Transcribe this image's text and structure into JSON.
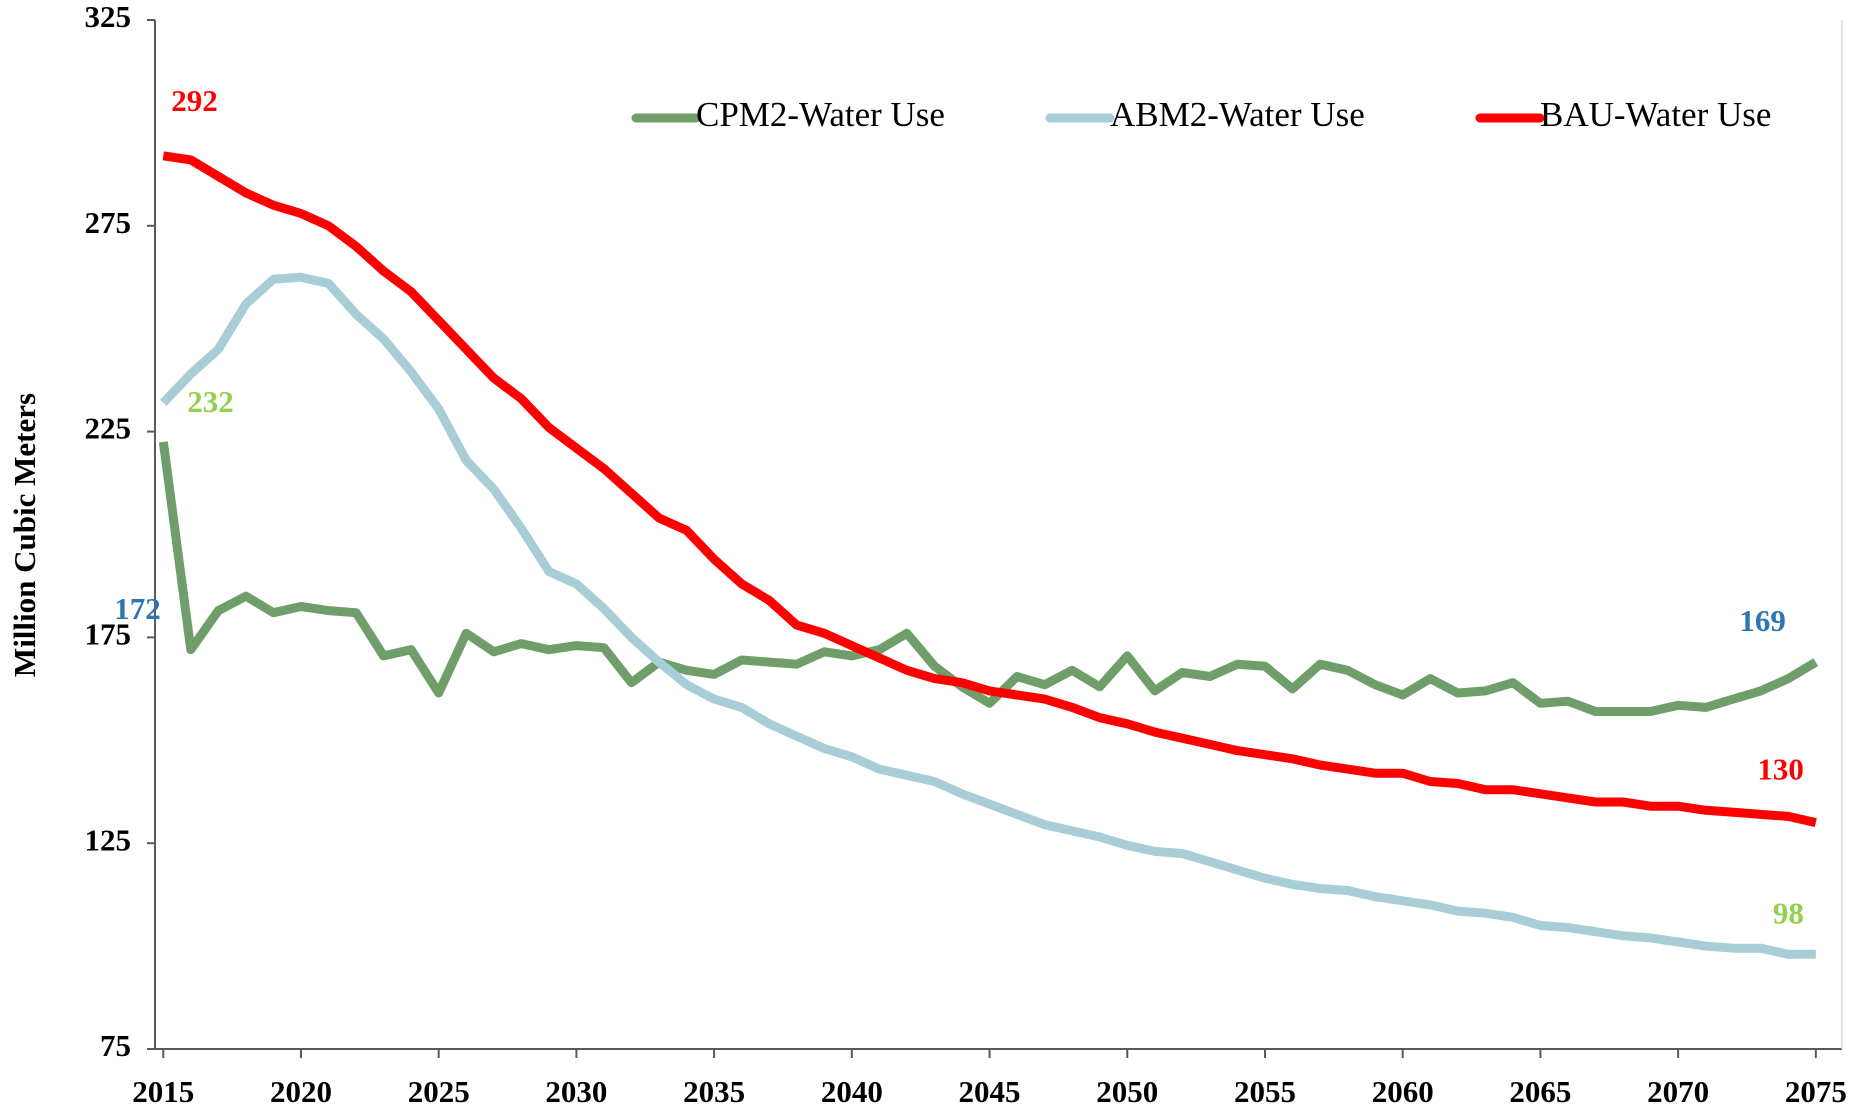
{
  "chart_data": {
    "type": "line",
    "y_label": "Million Cubic Meters",
    "x": [
      2015,
      2016,
      2017,
      2018,
      2019,
      2020,
      2021,
      2022,
      2023,
      2024,
      2025,
      2026,
      2027,
      2028,
      2029,
      2030,
      2031,
      2032,
      2033,
      2034,
      2035,
      2036,
      2037,
      2038,
      2039,
      2040,
      2041,
      2042,
      2043,
      2044,
      2045,
      2046,
      2047,
      2048,
      2049,
      2050,
      2051,
      2052,
      2053,
      2054,
      2055,
      2056,
      2057,
      2058,
      2059,
      2060,
      2061,
      2062,
      2063,
      2064,
      2065,
      2066,
      2067,
      2068,
      2069,
      2070,
      2071,
      2072,
      2073,
      2074,
      2075
    ],
    "xlim": [
      2014.7,
      2075.95
    ],
    "xticks": [
      2015,
      2020,
      2025,
      2030,
      2035,
      2040,
      2045,
      2050,
      2055,
      2060,
      2065,
      2070,
      2075
    ],
    "ylim": [
      75,
      325
    ],
    "yticks": [
      75,
      125,
      175,
      225,
      275,
      325
    ],
    "legend": "top-right",
    "series": [
      {
        "name": "CPM2-Water Use",
        "color": "#6f9e6a",
        "values": [
          222.5,
          172,
          181.5,
          185,
          181,
          182.5,
          181.5,
          181,
          170.5,
          172,
          161.5,
          176,
          171.5,
          173.5,
          172,
          173,
          172.5,
          164,
          169,
          167,
          166,
          169.5,
          169,
          168.5,
          171.5,
          170.5,
          172,
          176,
          168,
          163,
          159,
          165.5,
          163.5,
          167,
          163,
          170.5,
          162,
          166.5,
          165.5,
          168.5,
          168,
          162.5,
          168.5,
          167,
          163.5,
          161,
          165,
          161.5,
          162,
          164,
          159,
          159.5,
          157,
          157,
          157,
          158.5,
          158,
          160,
          162,
          165,
          169
        ],
        "value_labels": [
          null,
          "172",
          null,
          null,
          null,
          null,
          null,
          null,
          null,
          null,
          null,
          null,
          null,
          null,
          null,
          null,
          null,
          null,
          null,
          null,
          null,
          null,
          null,
          null,
          null,
          null,
          null,
          null,
          null,
          null,
          null,
          null,
          null,
          null,
          null,
          null,
          null,
          null,
          null,
          null,
          null,
          null,
          null,
          null,
          null,
          null,
          null,
          null,
          null,
          null,
          null,
          null,
          null,
          null,
          null,
          null,
          null,
          null,
          null,
          null,
          "169"
        ],
        "value_label_color": "#2e75b6"
      },
      {
        "name": "ABM2-Water Use",
        "color": "#a9cdd6",
        "values": [
          232,
          239,
          245,
          256,
          262,
          262.5,
          261,
          253.5,
          247.5,
          239.5,
          230.5,
          218,
          211,
          201.5,
          191,
          188,
          182,
          175,
          169,
          163.5,
          160,
          158,
          154,
          151,
          148,
          146,
          143,
          141.5,
          140,
          137,
          134.5,
          132,
          129.5,
          128,
          126.5,
          124.5,
          123,
          122.5,
          120.5,
          118.5,
          116.5,
          115,
          114,
          113.5,
          112,
          111,
          110,
          108.5,
          108,
          107,
          105,
          104.5,
          103.5,
          102.5,
          102,
          101,
          100,
          99.5,
          99.5,
          98,
          98
        ],
        "value_labels": [
          "232",
          null,
          null,
          null,
          null,
          null,
          null,
          null,
          null,
          null,
          null,
          null,
          null,
          null,
          null,
          null,
          null,
          null,
          null,
          null,
          null,
          null,
          null,
          null,
          null,
          null,
          null,
          null,
          null,
          null,
          null,
          null,
          null,
          null,
          null,
          null,
          null,
          null,
          null,
          null,
          null,
          null,
          null,
          null,
          null,
          null,
          null,
          null,
          null,
          null,
          null,
          null,
          null,
          null,
          null,
          null,
          null,
          null,
          null,
          null,
          "98"
        ],
        "value_label_color": "#92d050"
      },
      {
        "name": "BAU-Water Use",
        "color": "#ff0000",
        "values": [
          292,
          291,
          287,
          283,
          280,
          278,
          275,
          270,
          264,
          259,
          252,
          245,
          238,
          233,
          226,
          221,
          216,
          210,
          204,
          201,
          194,
          188,
          184,
          178,
          176,
          173,
          170,
          167,
          165,
          164,
          162,
          161,
          160,
          158,
          155.5,
          154,
          152,
          150.5,
          149,
          147.5,
          146.5,
          145.5,
          144,
          143,
          142,
          142,
          140,
          139.5,
          138,
          138,
          137,
          136,
          135,
          135,
          134,
          134,
          133,
          132.5,
          132,
          131.5,
          130
        ],
        "value_labels": [
          "292",
          null,
          null,
          null,
          null,
          null,
          null,
          null,
          null,
          null,
          null,
          null,
          null,
          null,
          null,
          null,
          null,
          null,
          null,
          null,
          null,
          null,
          null,
          null,
          null,
          null,
          null,
          null,
          null,
          null,
          null,
          null,
          null,
          null,
          null,
          null,
          null,
          null,
          null,
          null,
          null,
          null,
          null,
          null,
          null,
          null,
          null,
          null,
          null,
          null,
          null,
          null,
          null,
          null,
          null,
          null,
          null,
          null,
          null,
          null,
          "130"
        ],
        "value_label_color": "#ff0000"
      }
    ]
  }
}
